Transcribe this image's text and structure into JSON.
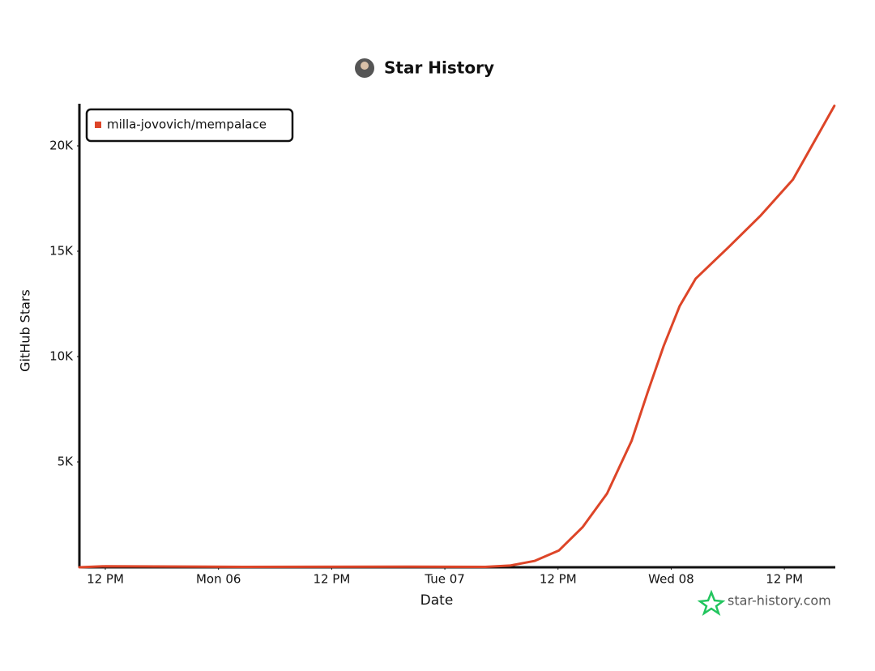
{
  "chart_data": {
    "type": "line",
    "title": "Star History",
    "x_label": "Date",
    "y_label": "GitHub Stars",
    "x": [
      -14.75,
      -12,
      2.6,
      19.8,
      28.3,
      30.9,
      33.5,
      36.1,
      38.6,
      41.2,
      43.8,
      45.5,
      47.2,
      48.9,
      50.6,
      54.1,
      57.5,
      60.9,
      65.3
    ],
    "series": [
      {
        "name": "milla-jovovich/mempalace",
        "color": "#dd4528",
        "values": [
          0,
          50,
          20,
          30,
          20,
          80,
          300,
          800,
          1900,
          3500,
          6000,
          8300,
          10500,
          12400,
          13700,
          15200,
          16700,
          18400,
          21900
        ]
      }
    ],
    "xlim": [
      -14.75,
      65.4
    ],
    "xticks": [
      {
        "value": -12,
        "label": "12 PM"
      },
      {
        "value": 0,
        "label": "Mon 06"
      },
      {
        "value": 12,
        "label": "12 PM"
      },
      {
        "value": 24,
        "label": "Tue 07"
      },
      {
        "value": 36,
        "label": "12 PM"
      },
      {
        "value": 48,
        "label": "Wed 08"
      },
      {
        "value": 60,
        "label": "12 PM"
      }
    ],
    "ylim": [
      0,
      22000
    ],
    "yticks": [
      {
        "value": 5000,
        "label": "5K"
      },
      {
        "value": 10000,
        "label": "10K"
      },
      {
        "value": 15000,
        "label": "15K"
      },
      {
        "value": 20000,
        "label": "20K"
      }
    ],
    "grid": false,
    "legend": "top-left",
    "watermark": "star-history.com"
  }
}
